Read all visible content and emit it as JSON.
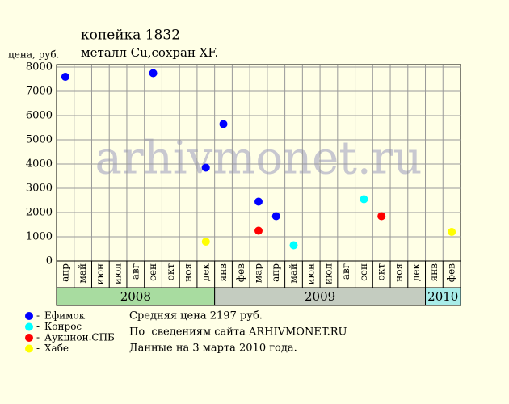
{
  "chart_data": {
    "type": "scatter",
    "title": "копейка 1832",
    "subtitle": "металл Cu,сохран XF.",
    "y_label": "цена, руб.",
    "watermark": "arhivmonet.ru",
    "groups": [
      {
        "name": "2008",
        "color": "#a8dca0",
        "categories": [
          "апр",
          "май",
          "июн",
          "июл",
          "авг",
          "сен",
          "окт",
          "ноя",
          "дек"
        ]
      },
      {
        "name": "2009",
        "color": "#c4ccc0",
        "categories": [
          "янв",
          "фев",
          "мар",
          "апр",
          "май",
          "июн",
          "июл",
          "авг",
          "сен",
          "окт",
          "ноя",
          "дек"
        ]
      },
      {
        "name": "2010",
        "color": "#a8ece8",
        "categories": [
          "янв",
          "фев"
        ]
      }
    ],
    "series": [
      {
        "name": "Ефимок",
        "color": "#0000ff",
        "values": [
          7600,
          null,
          null,
          null,
          null,
          7750,
          null,
          null,
          3850,
          5650,
          null,
          2450,
          1850,
          null,
          null,
          null,
          null,
          null,
          null,
          null,
          null,
          null,
          null
        ]
      },
      {
        "name": "Конрос",
        "color": "#00ffff",
        "values": [
          null,
          null,
          null,
          null,
          null,
          null,
          null,
          null,
          null,
          null,
          null,
          null,
          null,
          650,
          null,
          null,
          null,
          2550,
          null,
          null,
          null,
          null,
          null
        ]
      },
      {
        "name": "Аукцион.СПБ",
        "color": "#ff0000",
        "values": [
          null,
          null,
          null,
          null,
          null,
          null,
          null,
          null,
          null,
          null,
          null,
          1250,
          null,
          null,
          null,
          null,
          null,
          null,
          1850,
          null,
          null,
          null,
          null
        ]
      },
      {
        "name": "Хабе",
        "color": "#ffff00",
        "values": [
          null,
          null,
          null,
          null,
          null,
          null,
          null,
          null,
          800,
          null,
          null,
          null,
          null,
          null,
          null,
          null,
          null,
          null,
          null,
          null,
          null,
          null,
          1200
        ]
      }
    ],
    "ylim": [
      0,
      8000
    ],
    "yticks": [
      0,
      1000,
      2000,
      3000,
      4000,
      5000,
      6000,
      7000,
      8000
    ],
    "grid": true,
    "notes": [
      "Средняя цена 2197 руб.",
      "По  сведениям сайта ARHIVMONET.RU",
      "Данные на 3 марта 2010 года."
    ]
  }
}
